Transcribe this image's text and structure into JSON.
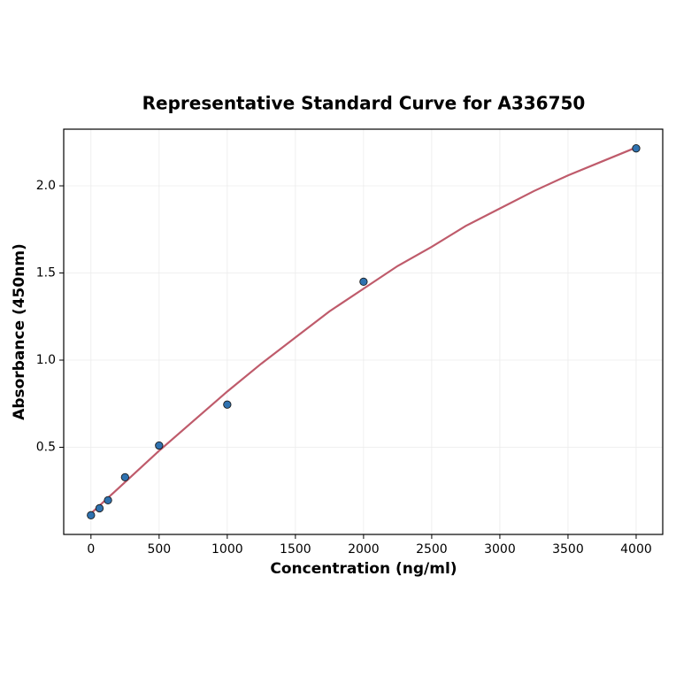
{
  "chart_data": {
    "type": "scatter",
    "title": "Representative Standard Curve for A336750",
    "x_label": "Concentration (ng/ml)",
    "y_label": "Absorbance (450nm)",
    "points": {
      "color": "#2f72b0",
      "x": [
        0,
        62.5,
        125,
        250,
        500,
        1000,
        2000,
        4000
      ],
      "values": [
        0.11,
        0.15,
        0.196,
        0.328,
        0.51,
        0.745,
        1.45,
        2.215
      ]
    },
    "curve": {
      "color": "#bf5b6b",
      "x": [
        0,
        250,
        500,
        750,
        1000,
        1250,
        1500,
        1750,
        2000,
        2250,
        2500,
        2750,
        3000,
        3250,
        3500,
        3750,
        4000
      ],
      "values": [
        0.12,
        0.3,
        0.48,
        0.65,
        0.82,
        0.98,
        1.13,
        1.28,
        1.41,
        1.54,
        1.65,
        1.77,
        1.87,
        1.97,
        2.06,
        2.14,
        2.22
      ]
    },
    "xlim": [
      -200,
      4195
    ],
    "ylim": [
      0,
      2.325
    ],
    "xticks": [
      0,
      500,
      1000,
      1500,
      2000,
      2500,
      3000,
      3500,
      4000
    ],
    "yticks": [
      0.5,
      {
        "value": 1,
        "label": "1.0"
      },
      1.5,
      {
        "value": 2,
        "label": "2.0"
      }
    ],
    "grid": true
  }
}
